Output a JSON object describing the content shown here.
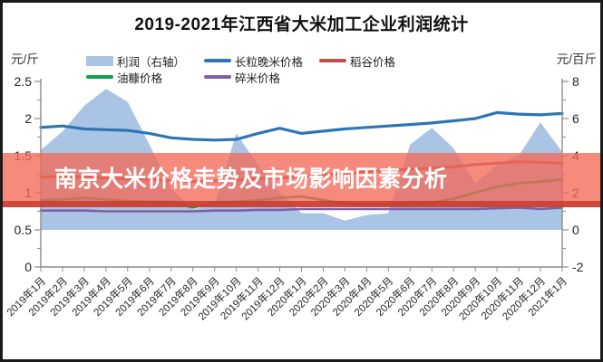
{
  "banner": {
    "text": "南京大米价格走势及市场影响因素分析",
    "bg_color": "#F26958",
    "border_color": "#C63728",
    "text_color": "#FFFFFF"
  },
  "chart_data": {
    "type": "area+line combo, dual axis",
    "title": "2019-2021年江西省大米加工企业利润统计",
    "left_axis": {
      "unit": "元/斤",
      "min": 0,
      "max": 2.5,
      "ticks": [
        2.5,
        2,
        1.5,
        1,
        0.5,
        0
      ]
    },
    "right_axis": {
      "unit": "元/百斤",
      "min": -2,
      "max": 8,
      "ticks": [
        8,
        6,
        4,
        2,
        0,
        -2
      ]
    },
    "grid": "off",
    "legend_position": "top, two rows",
    "categories": [
      "2019年1月",
      "2019年2月",
      "2019年3月",
      "2019年4月",
      "2019年5月",
      "2019年6月",
      "2019年7月",
      "2019年8月",
      "2019年9月",
      "2019年10月",
      "2019年11月",
      "2019年12月",
      "2020年1月",
      "2020年2月",
      "2020年3月",
      "2020年4月",
      "2020年5月",
      "2020年6月",
      "2020年7月",
      "2020年8月",
      "2020年9月",
      "2020年10月",
      "2020年11月",
      "2020年12月",
      "2021年1月"
    ],
    "series": [
      {
        "name": "利润（右轴）",
        "type": "area",
        "axis": "right",
        "color": "#A9C4E4",
        "values": [
          4.3,
          5.3,
          6.7,
          7.6,
          6.9,
          4.6,
          2.2,
          1.1,
          1.4,
          5.2,
          3.5,
          2.0,
          0.9,
          0.9,
          0.5,
          0.8,
          0.9,
          4.6,
          5.5,
          4.4,
          2.5,
          3.5,
          4.0,
          5.8,
          4.2
        ]
      },
      {
        "name": "长粒晚米价格",
        "type": "line",
        "axis": "left",
        "color": "#2E75B6",
        "values": [
          1.88,
          1.9,
          1.86,
          1.85,
          1.84,
          1.8,
          1.74,
          1.72,
          1.71,
          1.72,
          1.8,
          1.87,
          1.8,
          1.83,
          1.86,
          1.88,
          1.9,
          1.92,
          1.94,
          1.97,
          2.0,
          2.08,
          2.06,
          2.05,
          2.07
        ]
      },
      {
        "name": "稻谷价格",
        "type": "line",
        "axis": "left",
        "color": "#C0504D",
        "values": [
          1.21,
          1.22,
          1.21,
          1.2,
          1.19,
          1.18,
          1.16,
          1.15,
          1.16,
          1.17,
          1.19,
          1.2,
          1.22,
          1.24,
          1.26,
          1.28,
          1.3,
          1.32,
          1.33,
          1.35,
          1.38,
          1.4,
          1.42,
          1.41,
          1.4
        ]
      },
      {
        "name": "油糠价格",
        "type": "line",
        "axis": "left",
        "color": "#0FA24E",
        "values": [
          0.9,
          0.91,
          0.93,
          0.91,
          0.89,
          0.88,
          0.88,
          0.8,
          0.87,
          0.88,
          0.9,
          0.93,
          0.95,
          0.9,
          0.86,
          0.84,
          0.84,
          0.85,
          0.87,
          0.92,
          1.0,
          1.08,
          1.13,
          1.15,
          1.18
        ]
      },
      {
        "name": "碎米价格",
        "type": "line",
        "axis": "left",
        "color": "#7E5FA5",
        "values": [
          0.76,
          0.76,
          0.76,
          0.75,
          0.75,
          0.75,
          0.75,
          0.75,
          0.76,
          0.76,
          0.77,
          0.77,
          0.78,
          0.78,
          0.78,
          0.78,
          0.78,
          0.78,
          0.78,
          0.78,
          0.78,
          0.79,
          0.8,
          0.78,
          0.8
        ]
      }
    ],
    "legend_rows": [
      [
        {
          "label": "利润（右轴）",
          "swatch": "area",
          "color": "#A9C4E4"
        },
        {
          "label": "长粒晚米价格",
          "swatch": "line",
          "color": "#2E75B6"
        },
        {
          "label": "稻谷价格",
          "swatch": "line",
          "color": "#C0504D"
        }
      ],
      [
        {
          "label": "油糠价格",
          "swatch": "line",
          "color": "#0FA24E"
        },
        {
          "label": "碎米价格",
          "swatch": "line",
          "color": "#7E5FA5"
        }
      ]
    ]
  }
}
